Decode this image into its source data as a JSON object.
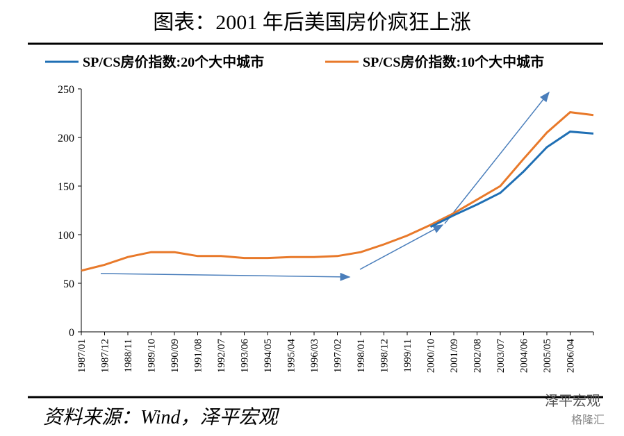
{
  "chart_data": {
    "type": "line",
    "title": "图表：2001 年后美国房价疯狂上涨",
    "source": "资料来源：Wind，泽平宏观",
    "watermark": "泽平宏观",
    "watermark2": "格隆汇",
    "categories": [
      "1987/01",
      "1987/12",
      "1988/11",
      "1989/10",
      "1990/09",
      "1991/08",
      "1992/07",
      "1993/06",
      "1994/05",
      "1995/04",
      "1996/03",
      "1997/02",
      "1998/01",
      "1998/12",
      "1999/11",
      "2000/10",
      "2001/09",
      "2002/08",
      "2003/07",
      "2004/06",
      "2005/05",
      "2006/04",
      null
    ],
    "series": [
      {
        "name": "SP/CS房价指数:20个大中城市",
        "color": "#1f6fb4",
        "values": [
          null,
          null,
          null,
          null,
          null,
          null,
          null,
          null,
          null,
          null,
          null,
          null,
          null,
          null,
          null,
          108,
          120,
          131,
          143,
          165,
          190,
          206,
          204
        ]
      },
      {
        "name": "SP/CS房价指数:10个大中城市",
        "color": "#e8792a",
        "values": [
          63,
          69,
          77,
          82,
          82,
          78,
          78,
          76,
          76,
          77,
          77,
          78,
          82,
          90,
          99,
          110,
          122,
          136,
          150,
          178,
          205,
          226,
          223
        ]
      }
    ],
    "ylim": [
      0,
      250
    ],
    "yticks": [
      0,
      50,
      100,
      150,
      200,
      250
    ],
    "grid": false
  }
}
